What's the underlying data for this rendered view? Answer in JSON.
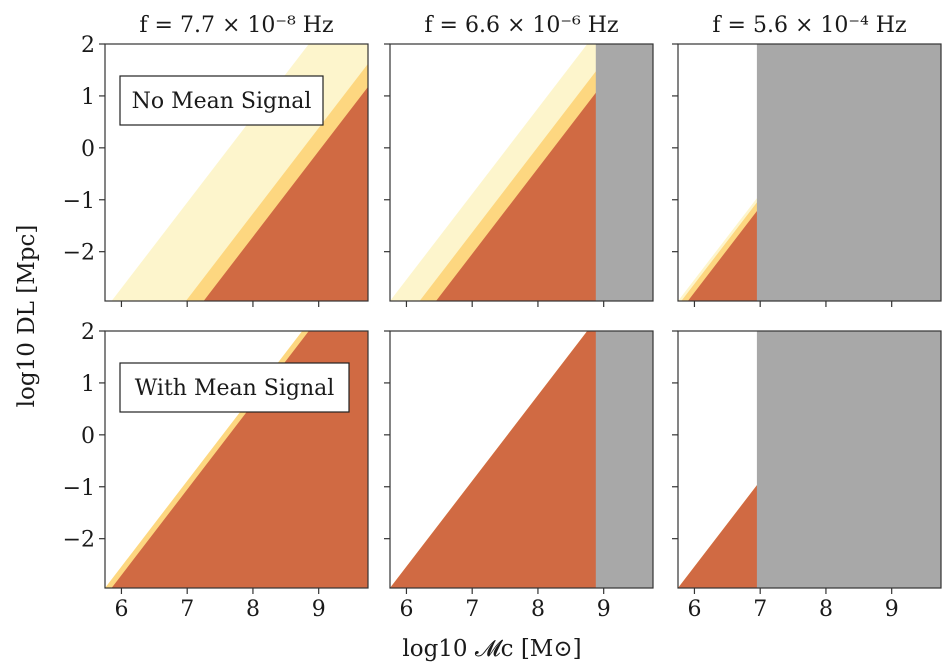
{
  "figure": {
    "xlabel": "log10 𝓜c [M⊙]",
    "ylabel": "log10 DL [Mpc]"
  },
  "colors": {
    "outer": "#fdf5cc",
    "middle": "#fdd780",
    "inner": "#d06a43",
    "excluded": "#a8a8a8",
    "frame": "#333333"
  },
  "chart_data": [
    {
      "type": "area",
      "row": "No Mean Signal",
      "title": "f = 7.7 × 10⁻⁸ Hz",
      "annotation": "No Mean Signal",
      "xlim": [
        5.75,
        9.75
      ],
      "ylim": [
        -2.95,
        2.0
      ],
      "xticks": [
        6,
        7,
        8,
        9
      ],
      "yticks": [
        -2,
        -1,
        0,
        1,
        2
      ],
      "series": [
        {
          "region": "outer",
          "boundary_x": [
            5.85,
            8.85
          ]
        },
        {
          "region": "middle",
          "boundary_x": [
            6.98,
            9.75
          ],
          "boundary_x_top_y": 1.7
        },
        {
          "region": "inner",
          "boundary_x": [
            7.25,
            9.75
          ],
          "boundary_x_top_y": 1.2
        }
      ],
      "excluded_above_x": null
    },
    {
      "type": "area",
      "row": "No Mean Signal",
      "title": "f = 6.6 × 10⁻⁶ Hz",
      "xlim": [
        5.75,
        9.75
      ],
      "ylim": [
        -2.95,
        2.0
      ],
      "xticks": [
        6,
        7,
        8,
        9
      ],
      "yticks": [
        -2,
        -1,
        0,
        1,
        2
      ],
      "series": [
        {
          "region": "outer",
          "boundary_x": [
            5.75,
            8.88
          ],
          "boundary_x_top_y": -2.2
        },
        {
          "region": "middle",
          "boundary_x": [
            6.2,
            8.88
          ],
          "boundary_x_top_y": 1.6
        },
        {
          "region": "inner",
          "boundary_x": [
            6.45,
            8.88
          ],
          "boundary_x_top_y": 1.1
        }
      ],
      "excluded_above_x": 8.88
    },
    {
      "type": "area",
      "row": "No Mean Signal",
      "title": "f = 5.6 × 10⁻⁴ Hz",
      "xlim": [
        5.75,
        9.75
      ],
      "ylim": [
        -2.95,
        2.0
      ],
      "xticks": [
        6,
        7,
        8,
        9
      ],
      "yticks": [
        -2,
        -1,
        0,
        1,
        2
      ],
      "series": [
        {
          "region": "outer",
          "boundary_x": [
            5.75,
            6.95
          ],
          "boundary_x_top_y": 0.5
        },
        {
          "region": "middle",
          "boundary_x": [
            5.8,
            6.95
          ],
          "boundary_x_top_y": -0.8
        },
        {
          "region": "inner",
          "boundary_x": [
            5.9,
            6.95
          ],
          "boundary_x_top_y": -1.15
        }
      ],
      "excluded_above_x": 6.95
    },
    {
      "type": "area",
      "row": "With Mean Signal",
      "title": "",
      "annotation": "With Mean Signal",
      "xlim": [
        5.75,
        9.75
      ],
      "ylim": [
        -2.95,
        2.0
      ],
      "xticks": [
        6,
        7,
        8,
        9
      ],
      "yticks": [
        -2,
        -1,
        0,
        1,
        2
      ],
      "series": [
        {
          "region": "outer",
          "boundary_x": [
            5.75,
            8.0
          ],
          "boundary_x_top_y": -1.4
        },
        {
          "region": "middle",
          "boundary_x": [
            5.75,
            8.65
          ],
          "boundary_x_top_y": -2.7
        },
        {
          "region": "inner",
          "boundary_x": [
            5.85,
            8.85
          ]
        }
      ],
      "excluded_above_x": null
    },
    {
      "type": "area",
      "row": "With Mean Signal",
      "title": "",
      "xlim": [
        5.75,
        9.75
      ],
      "ylim": [
        -2.95,
        2.0
      ],
      "xticks": [
        6,
        7,
        8,
        9
      ],
      "yticks": [
        -2,
        -1,
        0,
        1,
        2
      ],
      "series": [
        {
          "region": "outer",
          "boundary_x": [
            5.75,
            7.45
          ],
          "boundary_x_top_y": -0.4
        },
        {
          "region": "middle",
          "boundary_x": [
            5.75,
            7.9
          ],
          "boundary_x_top_y": -1.5
        },
        {
          "region": "inner",
          "boundary_x": [
            5.75,
            8.05
          ],
          "boundary_x_top_y": -1.85
        }
      ],
      "excluded_above_x": 8.88
    },
    {
      "type": "area",
      "row": "With Mean Signal",
      "title": "",
      "xlim": [
        5.75,
        9.75
      ],
      "ylim": [
        -2.95,
        2.0
      ],
      "xticks": [
        6,
        7,
        8,
        9
      ],
      "yticks": [
        -2,
        -1,
        0,
        1,
        2
      ],
      "series": [
        {
          "region": "outer",
          "boundary_x": [
            5.75,
            6.95
          ],
          "boundary_x_top_y": -0.1
        },
        {
          "region": "middle",
          "boundary_x": [
            5.75,
            6.95
          ],
          "boundary_x_top_y": -0.6
        },
        {
          "region": "inner",
          "boundary_x": [
            5.75,
            6.95
          ],
          "boundary_x_top_y": -0.8
        }
      ],
      "excluded_above_x": 6.95
    }
  ]
}
